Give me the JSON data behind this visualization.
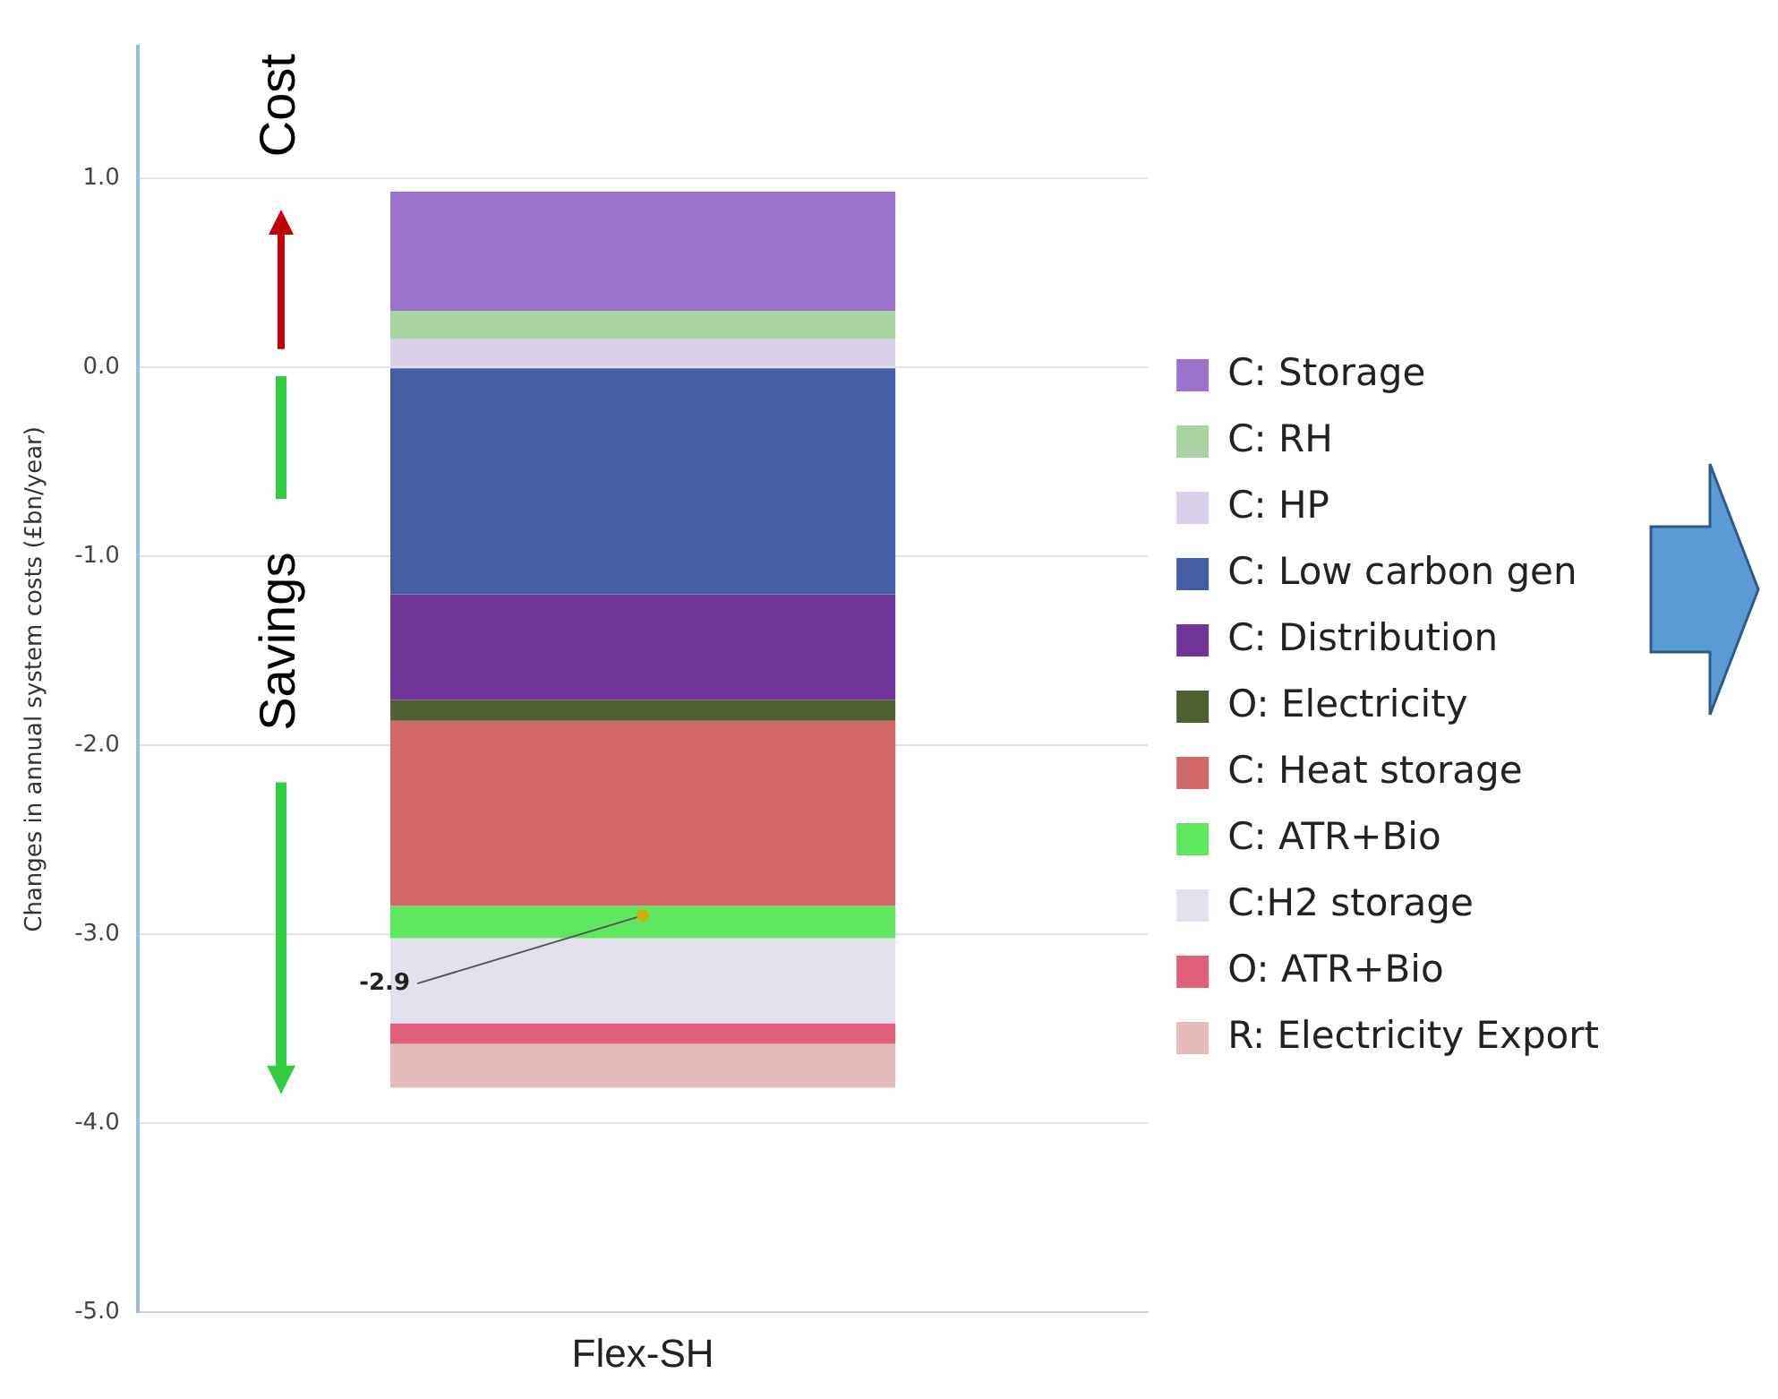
{
  "chart_data": {
    "type": "bar",
    "stacked": true,
    "ylabel": "Changes in annual system costs (£bn/year)",
    "categories": [
      "Flex-SH"
    ],
    "series": [
      {
        "name": "C: HP",
        "color": "#d9cfe8",
        "values": [
          0.15
        ]
      },
      {
        "name": "C: RH",
        "color": "#a9d3a0",
        "values": [
          0.15
        ]
      },
      {
        "name": "C: Storage",
        "color": "#9b72cc",
        "values": [
          0.63
        ]
      },
      {
        "name": "C: Low carbon gen",
        "color": "#445ea6",
        "values": [
          -1.2
        ]
      },
      {
        "name": "C: Distribution",
        "color": "#703598",
        "values": [
          -0.56
        ]
      },
      {
        "name": "O: Electricity",
        "color": "#4f6030",
        "values": [
          -0.11
        ]
      },
      {
        "name": "C: Heat storage",
        "color": "#d06868",
        "values": [
          -0.98
        ]
      },
      {
        "name": "C: ATR+Bio",
        "color": "#5fe85f",
        "values": [
          -0.17
        ]
      },
      {
        "name": "C:H2 storage",
        "color": "#e4e0ee",
        "values": [
          -0.45
        ]
      },
      {
        "name": "O: ATR+Bio",
        "color": "#e0607a",
        "values": [
          -0.11
        ]
      },
      {
        "name": "R: Electricity Export",
        "color": "#e3bcbb",
        "values": [
          -0.23
        ]
      }
    ],
    "ylim": [
      -5,
      1.7
    ],
    "yticks": [
      {
        "value": -5,
        "label": "-5.0"
      },
      {
        "value": -4,
        "label": "-4.0"
      },
      {
        "value": -3,
        "label": "-3.0"
      },
      {
        "value": -2,
        "label": "-2.0"
      },
      {
        "value": -1,
        "label": "-1.0"
      },
      {
        "value": 0,
        "label": "0.0"
      },
      {
        "value": 1,
        "label": "1.0"
      }
    ],
    "grid": "y",
    "legend": "right",
    "annotations": [
      "Cost",
      "Savings",
      {
        "text": "-2.9",
        "x": "Flex-SH",
        "y": -2.9
      }
    ]
  }
}
